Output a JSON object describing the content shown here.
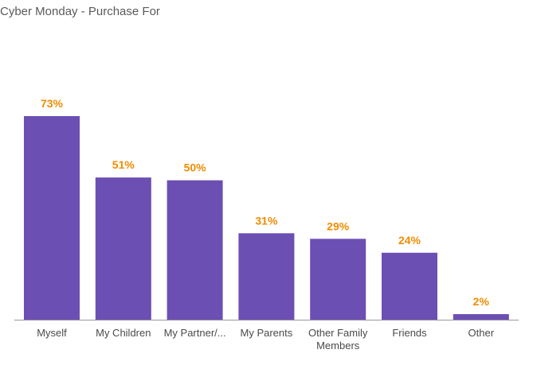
{
  "title": "Cyber Monday - Purchase For",
  "colors": {
    "bar": "#6c4fb3",
    "value_label": "#f08c00",
    "axis": "#999999",
    "title": "#5a5a5a"
  },
  "chart_data": {
    "type": "bar",
    "title": "Cyber Monday - Purchase For",
    "categories": [
      "Myself",
      "My Children",
      "My Partner/...",
      "My Parents",
      "Other Family Members",
      "Friends",
      "Other"
    ],
    "category_lines": [
      [
        "Myself"
      ],
      [
        "My Children"
      ],
      [
        "My Partner/..."
      ],
      [
        "My Parents"
      ],
      [
        "Other Family",
        "Members"
      ],
      [
        "Friends"
      ],
      [
        "Other"
      ]
    ],
    "values": [
      73,
      51,
      50,
      31,
      29,
      24,
      2
    ],
    "value_labels": [
      "73%",
      "51%",
      "50%",
      "31%",
      "29%",
      "24%",
      "2%"
    ],
    "unit": "%",
    "xlabel": "",
    "ylabel": "",
    "ylim": [
      0,
      73
    ],
    "grid": false,
    "legend": "none"
  }
}
